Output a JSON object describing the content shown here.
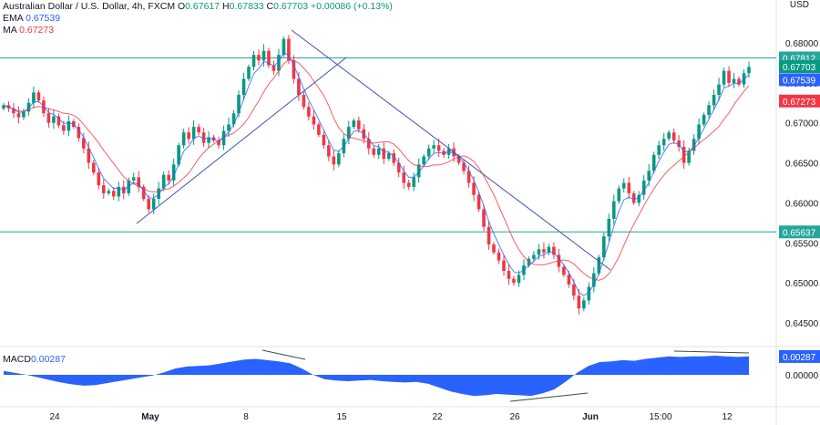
{
  "header": {
    "title": "Australian Dollar / U.S. Dollar, 4h, FXCM",
    "o_label": "O",
    "o_value": "0.67617",
    "h_label": "H",
    "h_value": "0.67833",
    "c_label": "C",
    "c_value": "0.67703",
    "change": "+0.00086 (+0.13%)",
    "ema_label": "EMA",
    "ema_value": "0.67539",
    "ma_label": "MA",
    "ma_value": "0.67273",
    "currency": "USD"
  },
  "colors": {
    "up": "#089981",
    "down": "#f23645",
    "ema": "#2962ff",
    "ma": "#f23645",
    "hline": "#26a69a",
    "trend": "#3f51b5",
    "macd": "#2962ff"
  },
  "chart_data": [
    {
      "type": "candlestick",
      "title": "Australian Dollar / U.S. Dollar, 4h, FXCM",
      "xlabel": "",
      "ylabel": "USD",
      "ylim": [
        0.6435,
        0.6812
      ],
      "y_ticks": [
        "0.68000",
        "0.67500",
        "0.67000",
        "0.66500",
        "0.66000",
        "0.65500",
        "0.65000",
        "0.64500"
      ],
      "x_ticks": [
        "24",
        "May",
        "8",
        "15",
        "22",
        "26",
        "Jun",
        "15:00",
        "12"
      ],
      "price_labels": [
        "0.67812",
        "0.67703",
        "0.67539",
        "0.67273",
        "0.65637"
      ],
      "horizontal_levels": [
        0.67812,
        0.65637
      ],
      "last_close": 0.67703,
      "ema_last": 0.67539,
      "ma_last": 0.67273,
      "closes_approx": [
        0.6722,
        0.6718,
        0.6712,
        0.6707,
        0.6714,
        0.6725,
        0.6738,
        0.6728,
        0.6712,
        0.67,
        0.6708,
        0.6697,
        0.669,
        0.6702,
        0.6695,
        0.6681,
        0.6668,
        0.665,
        0.6638,
        0.6622,
        0.6612,
        0.6615,
        0.6608,
        0.662,
        0.6612,
        0.6628,
        0.6632,
        0.662,
        0.6605,
        0.6592,
        0.6605,
        0.6618,
        0.6635,
        0.6628,
        0.6648,
        0.6672,
        0.6688,
        0.668,
        0.6695,
        0.6688,
        0.6675,
        0.6682,
        0.6678,
        0.6672,
        0.669,
        0.6698,
        0.6712,
        0.6735,
        0.6755,
        0.677,
        0.6785,
        0.6778,
        0.679,
        0.6772,
        0.6765,
        0.6785,
        0.6805,
        0.6778,
        0.6755,
        0.6735,
        0.672,
        0.6708,
        0.6698,
        0.6685,
        0.6672,
        0.6658,
        0.6648,
        0.6662,
        0.668,
        0.6695,
        0.6703,
        0.6692,
        0.668,
        0.6668,
        0.666,
        0.6668,
        0.6655,
        0.6662,
        0.665,
        0.6638,
        0.6625,
        0.662,
        0.6632,
        0.6648,
        0.6658,
        0.6668,
        0.6672,
        0.6665,
        0.666,
        0.6668,
        0.6658,
        0.665,
        0.664,
        0.6625,
        0.661,
        0.6592,
        0.657,
        0.6548,
        0.6538,
        0.6528,
        0.6515,
        0.6505,
        0.65,
        0.651,
        0.6522,
        0.653,
        0.6535,
        0.6542,
        0.6538,
        0.6545,
        0.6535,
        0.652,
        0.651,
        0.6498,
        0.6484,
        0.6468,
        0.6478,
        0.6495,
        0.6512,
        0.6532,
        0.6558,
        0.658,
        0.6602,
        0.6618,
        0.6625,
        0.6612,
        0.66,
        0.661,
        0.6628,
        0.664,
        0.666,
        0.6672,
        0.668,
        0.6688,
        0.6678,
        0.667,
        0.665,
        0.6665,
        0.668,
        0.6698,
        0.671,
        0.6722,
        0.6735,
        0.6748,
        0.6765,
        0.675,
        0.6755,
        0.6748,
        0.6762,
        0.677
      ]
    },
    {
      "type": "area",
      "title": "MACD",
      "current_value": "0.00287",
      "zero_label": "0.00000",
      "values_approx": [
        0.0006,
        0.0003,
        0.0,
        -0.0004,
        -0.0008,
        -0.0012,
        -0.0015,
        -0.0017,
        -0.0016,
        -0.0013,
        -0.001,
        -0.0007,
        -0.0004,
        -0.0001,
        0.0004,
        0.001,
        0.0013,
        0.0014,
        0.0015,
        0.0018,
        0.0021,
        0.0024,
        0.0025,
        0.0023,
        0.0021,
        0.0018,
        0.001,
        0.0,
        -0.0007,
        -0.0009,
        -0.001,
        -0.0009,
        -0.0008,
        -0.001,
        -0.0011,
        -0.0012,
        -0.0011,
        -0.0014,
        -0.002,
        -0.0026,
        -0.003,
        -0.0033,
        -0.0032,
        -0.003,
        -0.0031,
        -0.0032,
        -0.0033,
        -0.0029,
        -0.0023,
        -0.0011,
        0.0003,
        0.0014,
        0.002,
        0.0021,
        0.0023,
        0.0022,
        0.0025,
        0.0027,
        0.0029,
        0.0028,
        0.0029,
        0.0029,
        0.003,
        0.0029,
        0.0028,
        0.0029
      ]
    }
  ]
}
